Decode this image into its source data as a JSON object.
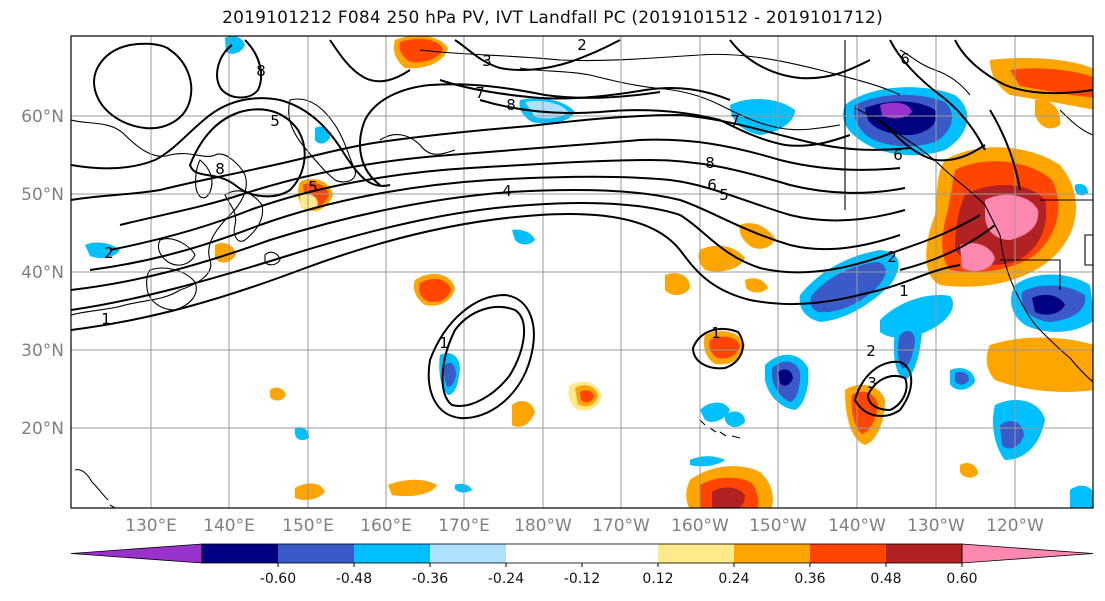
{
  "title": "2019101212 F084 250 hPa PV, IVT Landfall PC (2019101512 - 2019101712)",
  "lat_labels": [
    "60°N",
    "50°N",
    "40°N",
    "30°N",
    "20°N"
  ],
  "lon_labels": [
    "130°E",
    "140°E",
    "150°E",
    "160°E",
    "170°E",
    "180°W",
    "170°W",
    "160°W",
    "150°W",
    "140°W",
    "130°W",
    "120°W"
  ],
  "colorbar": {
    "colors": [
      "#9932CC",
      "#000080",
      "#3A5BC7",
      "#00BFFF",
      "#B0E0FF",
      "#FFFFFF",
      "#FFFFFF",
      "#FFE98A",
      "#FFA500",
      "#FF4500",
      "#B22222",
      "#FF88B0"
    ],
    "tick_labels": [
      "-0.60",
      "-0.48",
      "-0.36",
      "-0.24",
      "-0.12",
      "0.12",
      "0.24",
      "0.36",
      "0.48",
      "0.60"
    ]
  },
  "contour_labels": [
    "2",
    "3",
    "7",
    "8",
    "6",
    "8",
    "5",
    "5",
    "8",
    "7",
    "6",
    "5",
    "4",
    "8",
    "2",
    "2",
    "1",
    "1",
    "1",
    "1",
    "2",
    "3",
    "6"
  ],
  "colors": {
    "grid": "#999999",
    "contour": "#000000",
    "axis_text": "#808080"
  }
}
